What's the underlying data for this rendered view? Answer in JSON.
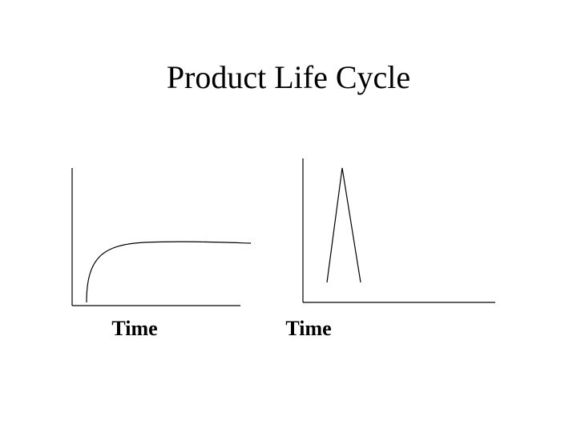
{
  "title": "Product Life Cycle",
  "panels": [
    {
      "axis_label": "Time"
    },
    {
      "axis_label": "Time"
    }
  ]
}
